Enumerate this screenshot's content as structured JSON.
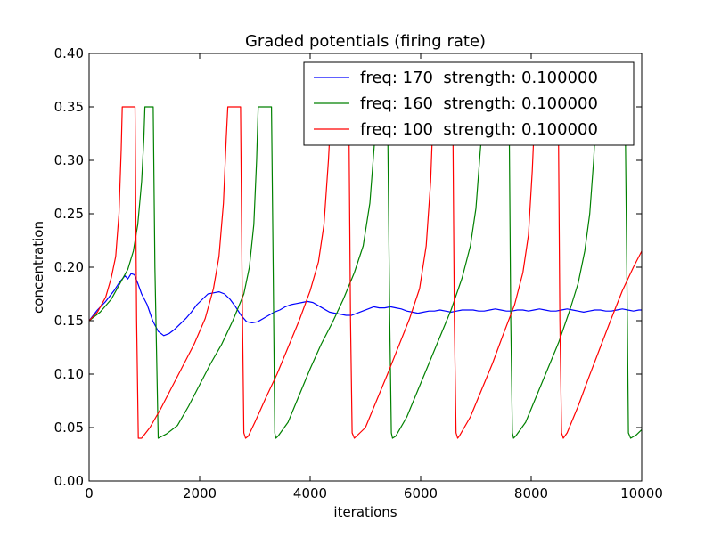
{
  "chart_data": {
    "type": "line",
    "title": "Graded potentials (firing rate)",
    "xlabel": "iterations",
    "ylabel": "concentration",
    "xlim": [
      0,
      10000
    ],
    "ylim": [
      0,
      0.4
    ],
    "xticks": [
      0,
      2000,
      4000,
      6000,
      8000,
      10000
    ],
    "xtick_labels": [
      "0",
      "2000",
      "4000",
      "6000",
      "8000",
      "10000"
    ],
    "yticks": [
      0,
      0.05,
      0.1,
      0.15,
      0.2,
      0.25,
      0.3,
      0.35,
      0.4
    ],
    "ytick_labels": [
      "0.00",
      "0.05",
      "0.10",
      "0.15",
      "0.20",
      "0.25",
      "0.30",
      "0.35",
      "0.40"
    ],
    "grid": false,
    "legend_position": "top-right",
    "series": [
      {
        "name": "freq: 170  strength: 0.100000",
        "color": "#0000ff",
        "x": [
          0,
          150,
          300,
          450,
          550,
          650,
          700,
          760,
          820,
          880,
          950,
          1050,
          1150,
          1250,
          1350,
          1450,
          1550,
          1650,
          1750,
          1850,
          1950,
          2050,
          2150,
          2250,
          2350,
          2450,
          2550,
          2650,
          2750,
          2850,
          2950,
          3050,
          3150,
          3250,
          3350,
          3450,
          3550,
          3650,
          3750,
          3850,
          3950,
          4050,
          4150,
          4250,
          4350,
          4450,
          4550,
          4650,
          4750,
          4850,
          4950,
          5050,
          5150,
          5250,
          5350,
          5450,
          5550,
          5650,
          5750,
          5850,
          5950,
          6050,
          6150,
          6250,
          6350,
          6450,
          6550,
          6650,
          6750,
          6850,
          6950,
          7050,
          7150,
          7250,
          7350,
          7450,
          7550,
          7650,
          7750,
          7850,
          7950,
          8050,
          8150,
          8250,
          8350,
          8450,
          8550,
          8650,
          8750,
          8850,
          8950,
          9050,
          9150,
          9250,
          9350,
          9450,
          9550,
          9650,
          9750,
          9850,
          9950,
          10000
        ],
        "values": [
          0.15,
          0.16,
          0.168,
          0.178,
          0.186,
          0.192,
          0.189,
          0.194,
          0.193,
          0.185,
          0.175,
          0.165,
          0.15,
          0.14,
          0.136,
          0.138,
          0.142,
          0.147,
          0.152,
          0.158,
          0.165,
          0.17,
          0.175,
          0.176,
          0.177,
          0.175,
          0.17,
          0.163,
          0.155,
          0.149,
          0.148,
          0.149,
          0.152,
          0.155,
          0.158,
          0.16,
          0.163,
          0.165,
          0.166,
          0.167,
          0.168,
          0.167,
          0.164,
          0.161,
          0.158,
          0.157,
          0.156,
          0.155,
          0.155,
          0.157,
          0.159,
          0.161,
          0.163,
          0.162,
          0.162,
          0.163,
          0.162,
          0.161,
          0.159,
          0.158,
          0.157,
          0.158,
          0.159,
          0.159,
          0.16,
          0.159,
          0.158,
          0.159,
          0.16,
          0.16,
          0.16,
          0.159,
          0.159,
          0.16,
          0.161,
          0.16,
          0.159,
          0.159,
          0.16,
          0.16,
          0.159,
          0.16,
          0.161,
          0.16,
          0.159,
          0.159,
          0.16,
          0.161,
          0.16,
          0.159,
          0.158,
          0.159,
          0.16,
          0.16,
          0.159,
          0.159,
          0.16,
          0.161,
          0.16,
          0.159,
          0.16,
          0.16
        ]
      },
      {
        "name": "freq: 160  strength: 0.100000",
        "color": "#008000",
        "x": [
          0,
          200,
          400,
          550,
          700,
          800,
          880,
          950,
          990,
          1010,
          1100,
          1160,
          1190,
          1250,
          1400,
          1600,
          1800,
          2000,
          2200,
          2400,
          2600,
          2800,
          2900,
          2980,
          3030,
          3060,
          3080,
          3300,
          3330,
          3360,
          3380,
          3420,
          3600,
          3800,
          4000,
          4200,
          4400,
          4600,
          4800,
          4960,
          5080,
          5170,
          5220,
          5250,
          5300,
          5400,
          5440,
          5470,
          5490,
          5550,
          5750,
          5950,
          6150,
          6350,
          6550,
          6750,
          6900,
          7000,
          7080,
          7150,
          7200,
          7230,
          7280,
          7600,
          7630,
          7660,
          7680,
          7720,
          7900,
          8100,
          8300,
          8500,
          8700,
          8850,
          8970,
          9060,
          9130,
          9180,
          9210,
          9250,
          9300,
          9400,
          9470,
          9530,
          9560,
          9600,
          9650,
          9700,
          9740,
          9760,
          9800,
          9900,
          10000
        ],
        "values": [
          0.15,
          0.158,
          0.17,
          0.184,
          0.198,
          0.215,
          0.24,
          0.28,
          0.32,
          0.35,
          0.35,
          0.35,
          0.2,
          0.04,
          0.044,
          0.052,
          0.07,
          0.09,
          0.11,
          0.128,
          0.15,
          0.175,
          0.2,
          0.24,
          0.3,
          0.35,
          0.35,
          0.35,
          0.2,
          0.045,
          0.04,
          0.042,
          0.055,
          0.08,
          0.105,
          0.128,
          0.148,
          0.17,
          0.195,
          0.22,
          0.26,
          0.32,
          0.35,
          0.35,
          0.35,
          0.35,
          0.15,
          0.045,
          0.04,
          0.042,
          0.06,
          0.085,
          0.11,
          0.135,
          0.16,
          0.19,
          0.22,
          0.255,
          0.31,
          0.35,
          0.35,
          0.35,
          0.35,
          0.35,
          0.15,
          0.045,
          0.04,
          0.042,
          0.055,
          0.08,
          0.105,
          0.13,
          0.16,
          0.185,
          0.215,
          0.25,
          0.3,
          0.35,
          0.35,
          0.35,
          0.35,
          0.35,
          0.35,
          0.35,
          0.35,
          0.35,
          0.35,
          0.35,
          0.15,
          0.045,
          0.04,
          0.043,
          0.048
        ]
      },
      {
        "name": "freq: 100  strength: 0.100000",
        "color": "#ff0000",
        "x": [
          0,
          150,
          300,
          400,
          480,
          540,
          580,
          600,
          700,
          800,
          830,
          860,
          890,
          950,
          1100,
          1300,
          1500,
          1700,
          1900,
          2100,
          2250,
          2350,
          2430,
          2480,
          2510,
          2540,
          2740,
          2770,
          2800,
          2830,
          2880,
          3000,
          3200,
          3400,
          3600,
          3800,
          4000,
          4150,
          4250,
          4330,
          4380,
          4420,
          4450,
          4700,
          4730,
          4760,
          4800,
          5000,
          5200,
          5400,
          5600,
          5800,
          5980,
          6100,
          6180,
          6230,
          6270,
          6300,
          6500,
          6580,
          6610,
          6640,
          6670,
          6700,
          6900,
          7100,
          7300,
          7500,
          7700,
          7850,
          7950,
          8020,
          8070,
          8110,
          8150,
          8450,
          8490,
          8520,
          8550,
          8580,
          8650,
          8850,
          9050,
          9250,
          9450,
          9650,
          9850,
          10000
        ],
        "values": [
          0.15,
          0.158,
          0.172,
          0.19,
          0.21,
          0.25,
          0.31,
          0.35,
          0.35,
          0.35,
          0.35,
          0.15,
          0.04,
          0.04,
          0.05,
          0.068,
          0.088,
          0.108,
          0.128,
          0.152,
          0.18,
          0.21,
          0.26,
          0.32,
          0.35,
          0.35,
          0.35,
          0.18,
          0.045,
          0.04,
          0.042,
          0.055,
          0.078,
          0.1,
          0.125,
          0.15,
          0.178,
          0.205,
          0.24,
          0.3,
          0.35,
          0.35,
          0.35,
          0.35,
          0.15,
          0.045,
          0.04,
          0.05,
          0.075,
          0.1,
          0.126,
          0.152,
          0.18,
          0.22,
          0.28,
          0.35,
          0.35,
          0.35,
          0.35,
          0.35,
          0.15,
          0.045,
          0.04,
          0.042,
          0.06,
          0.085,
          0.11,
          0.138,
          0.165,
          0.195,
          0.23,
          0.29,
          0.35,
          0.35,
          0.35,
          0.35,
          0.35,
          0.15,
          0.045,
          0.04,
          0.045,
          0.07,
          0.098,
          0.125,
          0.152,
          0.178,
          0.2,
          0.215
        ]
      }
    ]
  }
}
